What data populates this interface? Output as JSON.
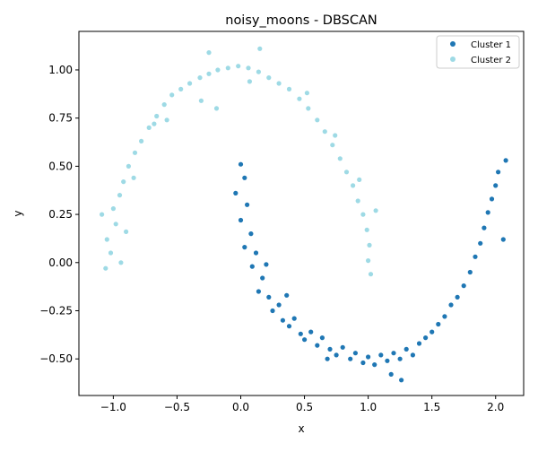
{
  "chart_data": {
    "type": "scatter",
    "title": "noisy_moons - DBSCAN",
    "xlabel": "x",
    "ylabel": "y",
    "xlim": [
      -1.27,
      2.22
    ],
    "ylim": [
      -0.69,
      1.2
    ],
    "xticks": [
      -1.0,
      -0.5,
      0.0,
      0.5,
      1.0,
      1.5,
      2.0
    ],
    "xtick_labels": [
      "−1.0",
      "−0.5",
      "0.0",
      "0.5",
      "1.0",
      "1.5",
      "2.0"
    ],
    "yticks": [
      -0.5,
      -0.25,
      0.0,
      0.25,
      0.5,
      0.75,
      1.0
    ],
    "ytick_labels": [
      "−0.50",
      "−0.25",
      "0.00",
      "0.25",
      "0.50",
      "0.75",
      "1.00"
    ],
    "grid": false,
    "legend_position": "top-right",
    "series": [
      {
        "name": "Cluster 1",
        "color": "#1f77b4",
        "points": [
          [
            0.0,
            0.51
          ],
          [
            0.03,
            0.44
          ],
          [
            -0.04,
            0.36
          ],
          [
            0.05,
            0.3
          ],
          [
            0.0,
            0.22
          ],
          [
            0.08,
            0.15
          ],
          [
            0.03,
            0.08
          ],
          [
            0.12,
            0.05
          ],
          [
            0.09,
            -0.02
          ],
          [
            0.17,
            -0.08
          ],
          [
            0.14,
            -0.15
          ],
          [
            0.22,
            -0.18
          ],
          [
            0.25,
            -0.25
          ],
          [
            0.3,
            -0.22
          ],
          [
            0.33,
            -0.3
          ],
          [
            0.38,
            -0.33
          ],
          [
            0.42,
            -0.29
          ],
          [
            0.47,
            -0.37
          ],
          [
            0.5,
            -0.4
          ],
          [
            0.55,
            -0.36
          ],
          [
            0.6,
            -0.43
          ],
          [
            0.64,
            -0.39
          ],
          [
            0.7,
            -0.45
          ],
          [
            0.75,
            -0.48
          ],
          [
            0.8,
            -0.44
          ],
          [
            0.86,
            -0.5
          ],
          [
            0.9,
            -0.47
          ],
          [
            0.96,
            -0.52
          ],
          [
            1.0,
            -0.49
          ],
          [
            1.05,
            -0.53
          ],
          [
            1.1,
            -0.48
          ],
          [
            1.15,
            -0.51
          ],
          [
            1.2,
            -0.47
          ],
          [
            1.25,
            -0.5
          ],
          [
            1.3,
            -0.45
          ],
          [
            1.35,
            -0.48
          ],
          [
            1.4,
            -0.42
          ],
          [
            1.45,
            -0.39
          ],
          [
            1.5,
            -0.36
          ],
          [
            1.55,
            -0.32
          ],
          [
            1.6,
            -0.28
          ],
          [
            1.65,
            -0.22
          ],
          [
            1.7,
            -0.18
          ],
          [
            1.75,
            -0.12
          ],
          [
            1.8,
            -0.05
          ],
          [
            1.84,
            0.03
          ],
          [
            1.88,
            0.1
          ],
          [
            1.91,
            0.18
          ],
          [
            1.94,
            0.26
          ],
          [
            1.97,
            0.33
          ],
          [
            2.0,
            0.4
          ],
          [
            2.02,
            0.47
          ],
          [
            2.08,
            0.53
          ],
          [
            1.26,
            -0.61
          ],
          [
            1.18,
            -0.58
          ],
          [
            0.68,
            -0.5
          ],
          [
            0.36,
            -0.17
          ],
          [
            0.2,
            -0.01
          ],
          [
            2.06,
            0.12
          ]
        ]
      },
      {
        "name": "Cluster 2",
        "color": "#9edae5",
        "points": [
          [
            -1.05,
            0.12
          ],
          [
            -1.02,
            0.05
          ],
          [
            -1.06,
            -0.03
          ],
          [
            -0.98,
            0.2
          ],
          [
            -1.0,
            0.28
          ],
          [
            -0.95,
            0.35
          ],
          [
            -0.92,
            0.42
          ],
          [
            -0.88,
            0.5
          ],
          [
            -0.83,
            0.57
          ],
          [
            -0.78,
            0.63
          ],
          [
            -0.72,
            0.7
          ],
          [
            -0.66,
            0.76
          ],
          [
            -0.6,
            0.82
          ],
          [
            -0.54,
            0.87
          ],
          [
            -0.47,
            0.9
          ],
          [
            -0.4,
            0.93
          ],
          [
            -0.32,
            0.96
          ],
          [
            -0.25,
            0.98
          ],
          [
            -0.18,
            1.0
          ],
          [
            -0.1,
            1.01
          ],
          [
            -0.02,
            1.02
          ],
          [
            0.06,
            1.01
          ],
          [
            0.14,
            0.99
          ],
          [
            0.22,
            0.96
          ],
          [
            0.3,
            0.93
          ],
          [
            0.38,
            0.9
          ],
          [
            0.46,
            0.85
          ],
          [
            0.53,
            0.8
          ],
          [
            0.6,
            0.74
          ],
          [
            0.66,
            0.68
          ],
          [
            0.72,
            0.61
          ],
          [
            0.78,
            0.54
          ],
          [
            0.83,
            0.47
          ],
          [
            0.88,
            0.4
          ],
          [
            0.92,
            0.32
          ],
          [
            0.96,
            0.25
          ],
          [
            0.99,
            0.17
          ],
          [
            1.01,
            0.09
          ],
          [
            1.0,
            0.01
          ],
          [
            1.02,
            -0.06
          ],
          [
            0.15,
            1.11
          ],
          [
            -0.25,
            1.09
          ],
          [
            -0.94,
            0.0
          ],
          [
            -0.9,
            0.16
          ],
          [
            -0.58,
            0.74
          ],
          [
            -0.19,
            0.8
          ],
          [
            0.07,
            0.94
          ],
          [
            0.52,
            0.88
          ],
          [
            0.74,
            0.66
          ],
          [
            0.93,
            0.43
          ],
          [
            1.06,
            0.27
          ],
          [
            -1.09,
            0.25
          ],
          [
            -0.84,
            0.44
          ],
          [
            -0.68,
            0.72
          ],
          [
            -0.31,
            0.84
          ]
        ]
      }
    ]
  }
}
